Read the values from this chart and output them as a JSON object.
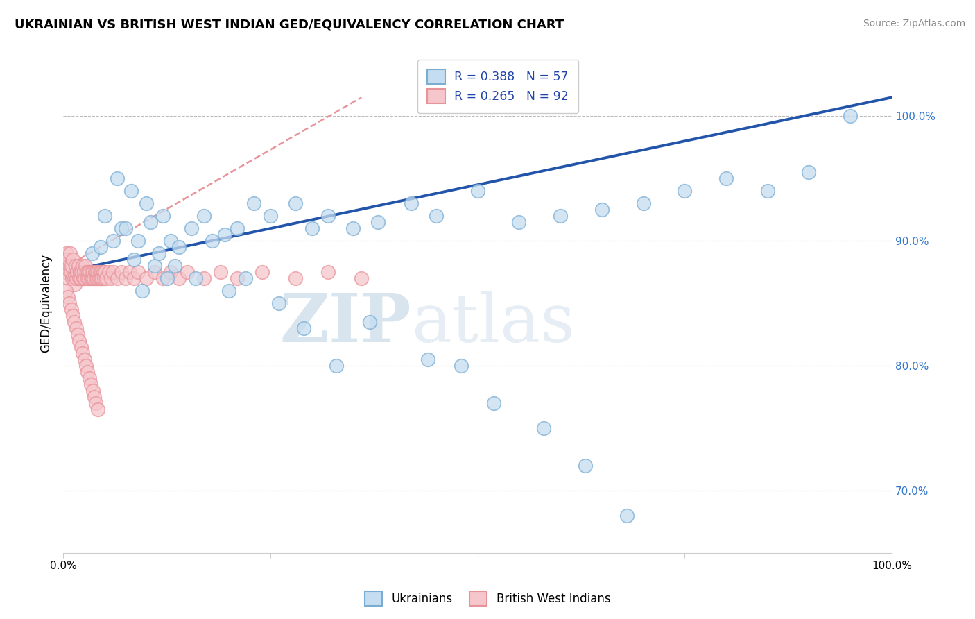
{
  "title": "UKRAINIAN VS BRITISH WEST INDIAN GED/EQUIVALENCY CORRELATION CHART",
  "source": "Source: ZipAtlas.com",
  "ylabel": "GED/Equivalency",
  "y_ticks": [
    70.0,
    80.0,
    90.0,
    100.0
  ],
  "y_tick_labels": [
    "70.0%",
    "80.0%",
    "90.0%",
    "100.0%"
  ],
  "x_lim": [
    0.0,
    100.0
  ],
  "y_lim": [
    65.0,
    105.0
  ],
  "legend_line1": "R = 0.388   N = 57",
  "legend_line2": "R = 0.265   N = 92",
  "blue_edge": "#7aadd4",
  "blue_face": "#c5ddf0",
  "pink_edge": "#e8939a",
  "pink_face": "#f5c6cb",
  "trend_blue": "#2255AA",
  "trend_pink_color": "#e8939a",
  "watermark_zip": "ZIP",
  "watermark_atlas": "atlas",
  "watermark_color": "#cfe0f0",
  "uk_x": [
    3.5,
    5.0,
    6.5,
    7.0,
    8.2,
    9.0,
    10.0,
    10.5,
    11.0,
    12.0,
    13.0,
    14.0,
    15.5,
    17.0,
    18.0,
    19.5,
    21.0,
    23.0,
    25.0,
    28.0,
    30.0,
    32.0,
    35.0,
    38.0,
    42.0,
    45.0,
    50.0,
    55.0,
    60.0,
    65.0,
    70.0,
    75.0,
    80.0,
    85.0,
    90.0,
    95.0,
    4.5,
    6.0,
    7.5,
    8.5,
    9.5,
    11.5,
    12.5,
    13.5,
    16.0,
    20.0,
    22.0,
    26.0,
    29.0,
    33.0,
    37.0,
    44.0,
    48.0,
    52.0,
    58.0,
    63.0,
    68.0
  ],
  "uk_y": [
    89.0,
    92.0,
    95.0,
    91.0,
    94.0,
    90.0,
    93.0,
    91.5,
    88.0,
    92.0,
    90.0,
    89.5,
    91.0,
    92.0,
    90.0,
    90.5,
    91.0,
    93.0,
    92.0,
    93.0,
    91.0,
    92.0,
    91.0,
    91.5,
    93.0,
    92.0,
    94.0,
    91.5,
    92.0,
    92.5,
    93.0,
    94.0,
    95.0,
    94.0,
    95.5,
    100.0,
    89.5,
    90.0,
    91.0,
    88.5,
    86.0,
    89.0,
    87.0,
    88.0,
    87.0,
    86.0,
    87.0,
    85.0,
    83.0,
    80.0,
    83.5,
    80.5,
    80.0,
    77.0,
    75.0,
    72.0,
    68.0
  ],
  "bwi_x": [
    0.2,
    0.3,
    0.4,
    0.5,
    0.6,
    0.7,
    0.8,
    0.9,
    1.0,
    1.1,
    1.2,
    1.3,
    1.4,
    1.5,
    1.6,
    1.7,
    1.8,
    1.9,
    2.0,
    2.1,
    2.2,
    2.3,
    2.4,
    2.5,
    2.6,
    2.7,
    2.8,
    2.9,
    3.0,
    3.1,
    3.2,
    3.3,
    3.4,
    3.5,
    3.6,
    3.7,
    3.8,
    3.9,
    4.0,
    4.1,
    4.2,
    4.3,
    4.4,
    4.5,
    4.6,
    4.7,
    4.8,
    4.9,
    5.0,
    5.2,
    5.5,
    5.8,
    6.0,
    6.5,
    7.0,
    7.5,
    8.0,
    8.5,
    9.0,
    10.0,
    11.0,
    12.0,
    13.0,
    14.0,
    15.0,
    17.0,
    19.0,
    21.0,
    24.0,
    28.0,
    32.0,
    36.0,
    0.35,
    0.55,
    0.75,
    0.95,
    1.15,
    1.35,
    1.55,
    1.75,
    1.95,
    2.15,
    2.35,
    2.55,
    2.75,
    2.95,
    3.15,
    3.35,
    3.55,
    3.75,
    3.95,
    4.15
  ],
  "bwi_y": [
    88.0,
    87.5,
    89.0,
    88.5,
    87.0,
    88.0,
    89.0,
    87.5,
    88.0,
    87.0,
    88.5,
    87.0,
    86.5,
    88.0,
    87.0,
    87.5,
    88.0,
    87.0,
    87.5,
    87.0,
    87.5,
    88.0,
    87.0,
    87.5,
    87.0,
    88.0,
    87.5,
    87.0,
    87.5,
    87.0,
    87.5,
    87.0,
    87.5,
    87.0,
    87.5,
    87.0,
    87.5,
    87.0,
    87.5,
    87.0,
    87.5,
    87.0,
    87.5,
    87.0,
    87.5,
    87.0,
    87.5,
    87.0,
    87.5,
    87.0,
    87.5,
    87.0,
    87.5,
    87.0,
    87.5,
    87.0,
    87.5,
    87.0,
    87.5,
    87.0,
    87.5,
    87.0,
    87.5,
    87.0,
    87.5,
    87.0,
    87.5,
    87.0,
    87.5,
    87.0,
    87.5,
    87.0,
    86.0,
    85.5,
    85.0,
    84.5,
    84.0,
    83.5,
    83.0,
    82.5,
    82.0,
    81.5,
    81.0,
    80.5,
    80.0,
    79.5,
    79.0,
    78.5,
    78.0,
    77.5,
    77.0,
    76.5
  ],
  "uk_trend_x": [
    0.0,
    100.0
  ],
  "uk_trend_y": [
    87.5,
    101.5
  ],
  "bwi_trend_x": [
    0.0,
    36.0
  ],
  "bwi_trend_y": [
    87.8,
    101.5
  ]
}
